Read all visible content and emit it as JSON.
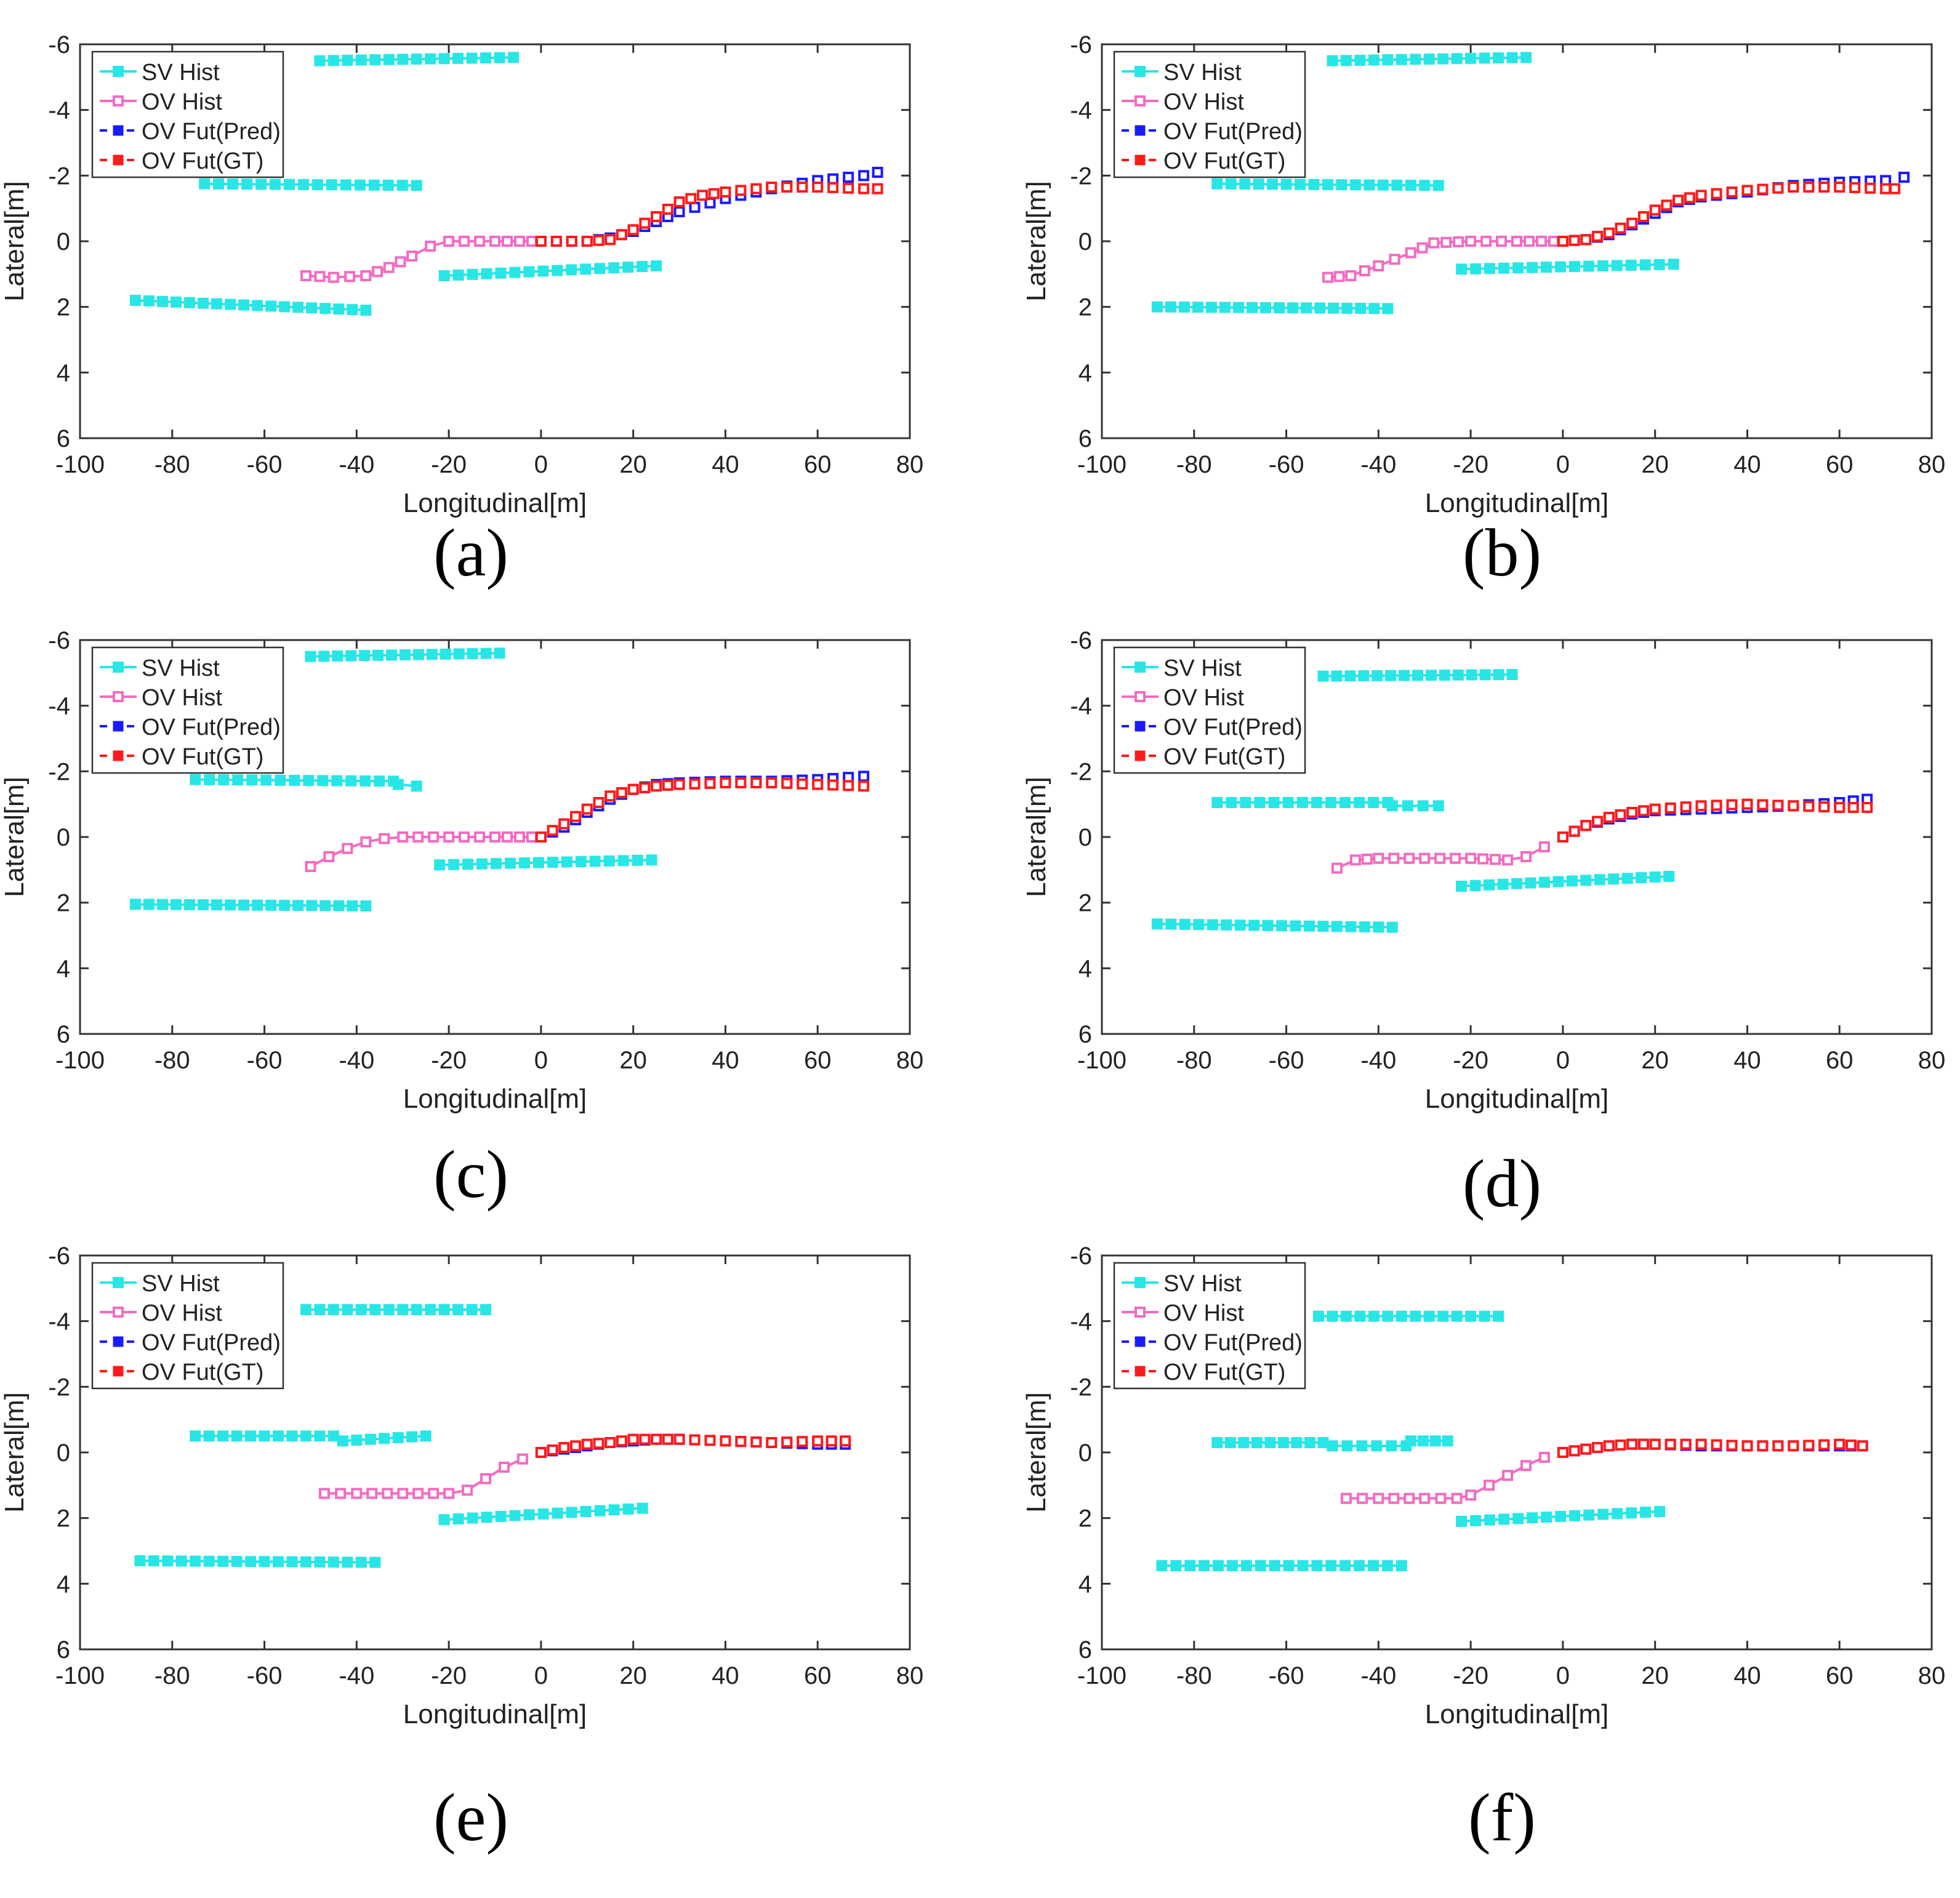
{
  "colors": {
    "sv": "#29e6e6",
    "ov_hist": "#f26cc1",
    "pred": "#1a1aff",
    "gt": "#ff1a1a",
    "axis": "#333333"
  },
  "chart_data": [
    {
      "type": "scatter",
      "panel": "a",
      "caption": "(a)",
      "xlabel": "Longitudinal[m]",
      "ylabel": "Lateral[m]",
      "xlim": [
        -100,
        80
      ],
      "ylim": [
        -6,
        6
      ],
      "xticks": [
        "-100",
        "-80",
        "-60",
        "-40",
        "-20",
        "0",
        "20",
        "40",
        "60",
        "80"
      ],
      "yticks": [
        "-6",
        "-4",
        "-2",
        "0",
        "2",
        "4",
        "6"
      ],
      "legend": [
        "SV Hist",
        "OV Hist",
        "OV Fut(Pred)",
        "OV Fut(GT)"
      ],
      "sv_hist": [
        {
          "x": [
            -48,
            -6
          ],
          "y": [
            -5.5,
            -5.6
          ]
        },
        {
          "x": [
            -73,
            -27
          ],
          "y": [
            -1.75,
            -1.7
          ]
        },
        {
          "x": [
            -88,
            -38
          ],
          "y": [
            1.8,
            2.1
          ]
        },
        {
          "x": [
            -21,
            25
          ],
          "y": [
            1.05,
            0.75
          ]
        }
      ],
      "ov_hist": {
        "x": [
          -51,
          -45,
          -38,
          -33,
          -28,
          -24,
          -20,
          -10,
          -2
        ],
        "y": [
          1.05,
          1.1,
          1.05,
          0.8,
          0.45,
          0.15,
          0,
          0,
          0
        ]
      },
      "ov_pred": {
        "x": [
          0,
          10,
          15,
          20,
          25,
          30,
          40,
          50,
          60,
          70,
          73
        ],
        "y": [
          0,
          0,
          -0.1,
          -0.3,
          -0.6,
          -0.9,
          -1.3,
          -1.6,
          -1.85,
          -2.0,
          -2.1
        ]
      },
      "ov_gt": {
        "x": [
          0,
          10,
          15,
          20,
          25,
          30,
          35,
          40,
          50,
          60,
          70,
          73
        ],
        "y": [
          0,
          0,
          -0.05,
          -0.35,
          -0.75,
          -1.2,
          -1.4,
          -1.5,
          -1.65,
          -1.65,
          -1.6,
          -1.6
        ]
      }
    },
    {
      "type": "scatter",
      "panel": "b",
      "caption": "(b)",
      "xlabel": "Longitudinal[m]",
      "ylabel": "Lateral[m]",
      "xlim": [
        -100,
        80
      ],
      "ylim": [
        -6,
        6
      ],
      "xticks": [
        "-100",
        "-80",
        "-60",
        "-40",
        "-20",
        "0",
        "20",
        "40",
        "60",
        "80"
      ],
      "yticks": [
        "-6",
        "-4",
        "-2",
        "0",
        "2",
        "4",
        "6"
      ],
      "legend": [
        "SV Hist",
        "OV Hist",
        "OV Fut(Pred)",
        "OV Fut(GT)"
      ],
      "sv_hist": [
        {
          "x": [
            -50,
            -8
          ],
          "y": [
            -5.5,
            -5.6
          ]
        },
        {
          "x": [
            -75,
            -27
          ],
          "y": [
            -1.75,
            -1.7
          ]
        },
        {
          "x": [
            -88,
            -38
          ],
          "y": [
            2.0,
            2.05
          ]
        },
        {
          "x": [
            -22,
            24
          ],
          "y": [
            0.85,
            0.7
          ]
        }
      ],
      "ov_hist": {
        "x": [
          -51,
          -46,
          -40,
          -33,
          -28,
          -20,
          -10,
          -2
        ],
        "y": [
          1.1,
          1.05,
          0.75,
          0.35,
          0.05,
          0,
          0,
          0
        ]
      },
      "ov_pred": {
        "x": [
          0,
          5,
          10,
          15,
          20,
          25,
          30,
          40,
          50,
          60,
          70,
          74
        ],
        "y": [
          0,
          -0.05,
          -0.2,
          -0.5,
          -0.85,
          -1.2,
          -1.35,
          -1.5,
          -1.7,
          -1.8,
          -1.85,
          -1.95
        ]
      },
      "ov_gt": {
        "x": [
          0,
          5,
          10,
          15,
          20,
          25,
          30,
          40,
          50,
          60,
          70,
          72
        ],
        "y": [
          0,
          -0.05,
          -0.25,
          -0.55,
          -0.95,
          -1.25,
          -1.4,
          -1.55,
          -1.65,
          -1.65,
          -1.6,
          -1.6
        ]
      }
    },
    {
      "type": "scatter",
      "panel": "c",
      "caption": "(c)",
      "xlabel": "Longitudinal[m]",
      "ylabel": "Lateral[m]",
      "xlim": [
        -100,
        80
      ],
      "ylim": [
        -6,
        6
      ],
      "xticks": [
        "-100",
        "-80",
        "-60",
        "-40",
        "-20",
        "0",
        "20",
        "40",
        "60",
        "80"
      ],
      "yticks": [
        "-6",
        "-4",
        "-2",
        "0",
        "2",
        "4",
        "6"
      ],
      "legend": [
        "SV Hist",
        "OV Hist",
        "OV Fut(Pred)",
        "OV Fut(GT)"
      ],
      "sv_hist": [
        {
          "x": [
            -50,
            -9
          ],
          "y": [
            -5.5,
            -5.6
          ]
        },
        {
          "x": [
            -75,
            -32
          ],
          "y": [
            -1.75,
            -1.7
          ]
        },
        {
          "x": [
            -31,
            -27
          ],
          "y": [
            -1.6,
            -1.55
          ]
        },
        {
          "x": [
            -88,
            -38
          ],
          "y": [
            2.05,
            2.1
          ]
        },
        {
          "x": [
            -22,
            24
          ],
          "y": [
            0.85,
            0.7
          ]
        }
      ],
      "ov_hist": {
        "x": [
          -50,
          -46,
          -42,
          -38,
          -34,
          -30,
          -20,
          -10,
          -2
        ],
        "y": [
          0.9,
          0.6,
          0.35,
          0.15,
          0.05,
          0,
          0,
          0,
          0
        ]
      },
      "ov_pred": {
        "x": [
          0,
          5,
          10,
          15,
          20,
          25,
          30,
          40,
          50,
          60,
          70
        ],
        "y": [
          0,
          -0.3,
          -0.75,
          -1.15,
          -1.45,
          -1.6,
          -1.65,
          -1.7,
          -1.7,
          -1.75,
          -1.85
        ]
      },
      "ov_gt": {
        "x": [
          0,
          5,
          10,
          15,
          20,
          25,
          30,
          40,
          50,
          60,
          70
        ],
        "y": [
          0,
          -0.4,
          -0.85,
          -1.25,
          -1.45,
          -1.55,
          -1.6,
          -1.65,
          -1.65,
          -1.6,
          -1.55
        ]
      }
    },
    {
      "type": "scatter",
      "panel": "d",
      "caption": "(d)",
      "xlabel": "Longitudinal[m]",
      "ylabel": "Lateral[m]",
      "xlim": [
        -100,
        80
      ],
      "ylim": [
        -6,
        6
      ],
      "xticks": [
        "-100",
        "-80",
        "-60",
        "-40",
        "-20",
        "0",
        "20",
        "40",
        "60",
        "80"
      ],
      "yticks": [
        "-6",
        "-4",
        "-2",
        "0",
        "2",
        "4",
        "6"
      ],
      "legend": [
        "SV Hist",
        "OV Hist",
        "OV Fut(Pred)",
        "OV Fut(GT)"
      ],
      "sv_hist": [
        {
          "x": [
            -52,
            -11
          ],
          "y": [
            -4.9,
            -4.95
          ]
        },
        {
          "x": [
            -75,
            -38
          ],
          "y": [
            -1.05,
            -1.05
          ]
        },
        {
          "x": [
            -37,
            -27
          ],
          "y": [
            -0.95,
            -0.95
          ]
        },
        {
          "x": [
            -88,
            -37
          ],
          "y": [
            2.65,
            2.75
          ]
        },
        {
          "x": [
            -22,
            23
          ],
          "y": [
            1.5,
            1.2
          ]
        }
      ],
      "ov_hist": {
        "x": [
          -49,
          -45,
          -40,
          -30,
          -20,
          -12,
          -8,
          -4
        ],
        "y": [
          0.95,
          0.7,
          0.65,
          0.65,
          0.65,
          0.7,
          0.6,
          0.3
        ]
      },
      "ov_pred": {
        "x": [
          0,
          5,
          10,
          15,
          20,
          30,
          40,
          50,
          60,
          66
        ],
        "y": [
          0,
          -0.35,
          -0.55,
          -0.7,
          -0.8,
          -0.85,
          -0.9,
          -0.95,
          -1.05,
          -1.15
        ]
      },
      "ov_gt": {
        "x": [
          0,
          5,
          10,
          15,
          20,
          30,
          40,
          50,
          60,
          66
        ],
        "y": [
          0,
          -0.35,
          -0.6,
          -0.75,
          -0.85,
          -0.95,
          -1.0,
          -0.95,
          -0.9,
          -0.9
        ]
      }
    },
    {
      "type": "scatter",
      "panel": "e",
      "caption": "(e)",
      "xlabel": "Longitudinal[m]",
      "ylabel": "Lateral[m]",
      "xlim": [
        -100,
        80
      ],
      "ylim": [
        -6,
        6
      ],
      "xticks": [
        "-100",
        "-80",
        "-60",
        "-40",
        "-20",
        "0",
        "20",
        "40",
        "60",
        "80"
      ],
      "yticks": [
        "-6",
        "-4",
        "-2",
        "0",
        "2",
        "4",
        "6"
      ],
      "legend": [
        "SV Hist",
        "OV Hist",
        "OV Fut(Pred)",
        "OV Fut(GT)"
      ],
      "sv_hist": [
        {
          "x": [
            -51,
            -12
          ],
          "y": [
            -4.35,
            -4.35
          ]
        },
        {
          "x": [
            -75,
            -45
          ],
          "y": [
            -0.5,
            -0.5
          ]
        },
        {
          "x": [
            -43,
            -25
          ],
          "y": [
            -0.35,
            -0.5
          ]
        },
        {
          "x": [
            -87,
            -36
          ],
          "y": [
            3.3,
            3.35
          ]
        },
        {
          "x": [
            -21,
            22
          ],
          "y": [
            2.05,
            1.7
          ]
        }
      ],
      "ov_hist": {
        "x": [
          -47,
          -40,
          -30,
          -20,
          -16,
          -12,
          -8,
          -4
        ],
        "y": [
          1.25,
          1.25,
          1.25,
          1.25,
          1.15,
          0.8,
          0.45,
          0.2
        ]
      },
      "ov_pred": {
        "x": [
          0,
          5,
          10,
          15,
          20,
          25,
          30,
          40,
          50,
          60,
          66
        ],
        "y": [
          0,
          -0.1,
          -0.2,
          -0.3,
          -0.35,
          -0.4,
          -0.4,
          -0.35,
          -0.3,
          -0.25,
          -0.25
        ]
      },
      "ov_gt": {
        "x": [
          0,
          5,
          10,
          15,
          20,
          25,
          30,
          40,
          50,
          60,
          66
        ],
        "y": [
          0,
          -0.15,
          -0.25,
          -0.3,
          -0.4,
          -0.4,
          -0.4,
          -0.35,
          -0.3,
          -0.35,
          -0.35
        ]
      }
    },
    {
      "type": "scatter",
      "panel": "f",
      "caption": "(f)",
      "xlabel": "Longitudinal[m]",
      "ylabel": "Lateral[m]",
      "xlim": [
        -100,
        80
      ],
      "ylim": [
        -6,
        6
      ],
      "xticks": [
        "-100",
        "-80",
        "-60",
        "-40",
        "-20",
        "0",
        "20",
        "40",
        "60",
        "80"
      ],
      "yticks": [
        "-6",
        "-4",
        "-2",
        "0",
        "2",
        "4",
        "6"
      ],
      "legend": [
        "SV Hist",
        "OV Hist",
        "OV Fut(Pred)",
        "OV Fut(GT)"
      ],
      "sv_hist": [
        {
          "x": [
            -53,
            -14
          ],
          "y": [
            -4.15,
            -4.15
          ]
        },
        {
          "x": [
            -75,
            -52
          ],
          "y": [
            -0.3,
            -0.3
          ]
        },
        {
          "x": [
            -50,
            -34
          ],
          "y": [
            -0.2,
            -0.2
          ]
        },
        {
          "x": [
            -33,
            -25
          ],
          "y": [
            -0.35,
            -0.35
          ]
        },
        {
          "x": [
            -87,
            -35
          ],
          "y": [
            3.45,
            3.45
          ]
        },
        {
          "x": [
            -22,
            21
          ],
          "y": [
            2.1,
            1.8
          ]
        }
      ],
      "ov_hist": {
        "x": [
          -47,
          -40,
          -30,
          -23,
          -20,
          -16,
          -12,
          -8,
          -4
        ],
        "y": [
          1.4,
          1.4,
          1.4,
          1.4,
          1.3,
          1.0,
          0.7,
          0.4,
          0.15
        ]
      },
      "ov_pred": {
        "x": [
          0,
          5,
          10,
          15,
          20,
          30,
          40,
          50,
          60,
          65
        ],
        "y": [
          0,
          -0.1,
          -0.2,
          -0.25,
          -0.25,
          -0.2,
          -0.2,
          -0.2,
          -0.2,
          -0.2
        ]
      },
      "ov_gt": {
        "x": [
          0,
          5,
          10,
          15,
          20,
          30,
          40,
          50,
          60,
          65
        ],
        "y": [
          0,
          -0.1,
          -0.2,
          -0.25,
          -0.25,
          -0.25,
          -0.2,
          -0.2,
          -0.25,
          -0.2
        ]
      }
    }
  ]
}
